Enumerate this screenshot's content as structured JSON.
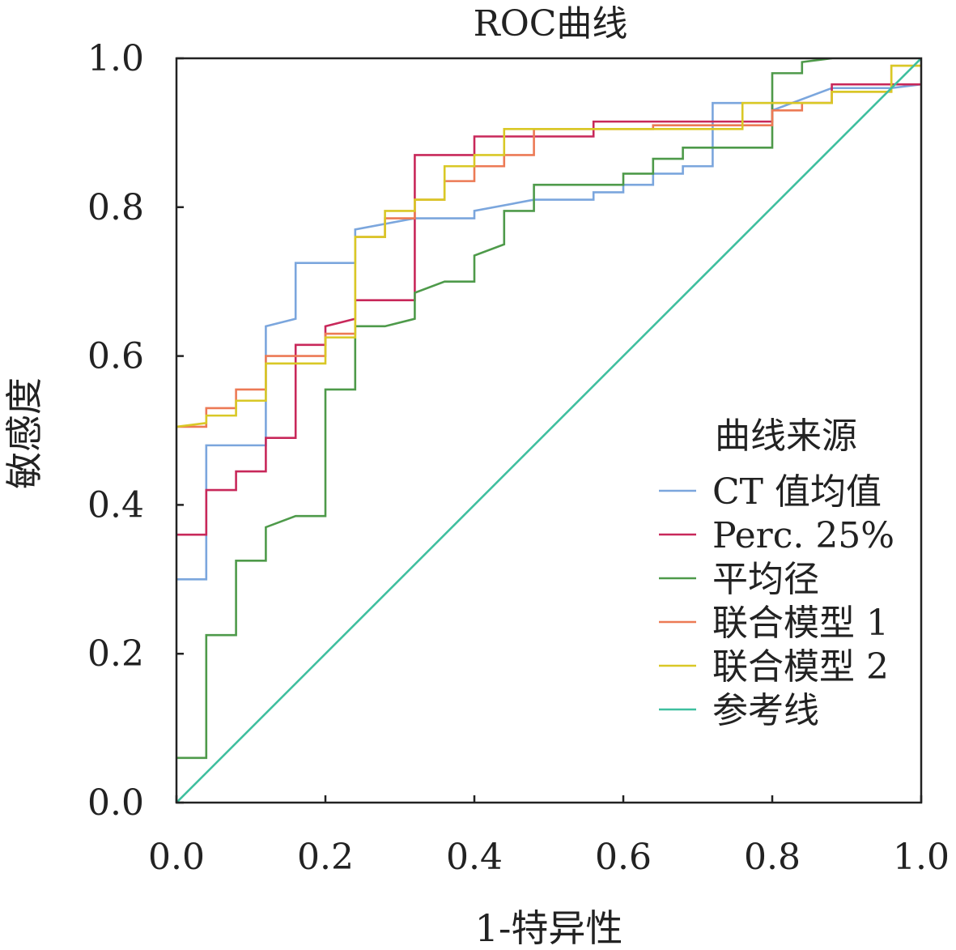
{
  "chart_data": {
    "type": "line",
    "title": "ROC曲线",
    "xlabel": "1-特异性",
    "ylabel": "敏感度",
    "xlim": [
      0,
      1
    ],
    "ylim": [
      0,
      1
    ],
    "x_ticks": [
      "0.0",
      "0.2",
      "0.4",
      "0.6",
      "0.8",
      "1.0"
    ],
    "y_ticks": [
      "0.0",
      "0.2",
      "0.4",
      "0.6",
      "0.8",
      "1.0"
    ],
    "grid": false,
    "legend_title": "曲线来源",
    "legend_position": "right",
    "series": [
      {
        "name": "CT 值均值",
        "color": "#7ba6dd",
        "points": [
          [
            0,
            0.3
          ],
          [
            0.04,
            0.3
          ],
          [
            0.04,
            0.48
          ],
          [
            0.12,
            0.48
          ],
          [
            0.12,
            0.64
          ],
          [
            0.16,
            0.65
          ],
          [
            0.16,
            0.725
          ],
          [
            0.24,
            0.725
          ],
          [
            0.24,
            0.77
          ],
          [
            0.32,
            0.785
          ],
          [
            0.4,
            0.785
          ],
          [
            0.4,
            0.795
          ],
          [
            0.48,
            0.81
          ],
          [
            0.56,
            0.81
          ],
          [
            0.56,
            0.82
          ],
          [
            0.6,
            0.82
          ],
          [
            0.6,
            0.83
          ],
          [
            0.64,
            0.83
          ],
          [
            0.64,
            0.845
          ],
          [
            0.68,
            0.845
          ],
          [
            0.68,
            0.855
          ],
          [
            0.72,
            0.855
          ],
          [
            0.72,
            0.94
          ],
          [
            0.8,
            0.94
          ],
          [
            0.8,
            0.93
          ],
          [
            0.88,
            0.96
          ],
          [
            0.96,
            0.96
          ],
          [
            1.0,
            0.965
          ]
        ]
      },
      {
        "name": "Perc. 25%",
        "color": "#c8285a",
        "points": [
          [
            0,
            0.36
          ],
          [
            0.04,
            0.36
          ],
          [
            0.04,
            0.42
          ],
          [
            0.08,
            0.42
          ],
          [
            0.08,
            0.445
          ],
          [
            0.12,
            0.445
          ],
          [
            0.12,
            0.49
          ],
          [
            0.16,
            0.49
          ],
          [
            0.16,
            0.615
          ],
          [
            0.2,
            0.615
          ],
          [
            0.2,
            0.64
          ],
          [
            0.24,
            0.65
          ],
          [
            0.24,
            0.675
          ],
          [
            0.32,
            0.675
          ],
          [
            0.32,
            0.87
          ],
          [
            0.4,
            0.87
          ],
          [
            0.4,
            0.895
          ],
          [
            0.48,
            0.895
          ],
          [
            0.56,
            0.895
          ],
          [
            0.56,
            0.915
          ],
          [
            0.8,
            0.915
          ],
          [
            0.8,
            0.94
          ],
          [
            0.88,
            0.94
          ],
          [
            0.88,
            0.965
          ],
          [
            1.0,
            0.965
          ]
        ]
      },
      {
        "name": "平均径",
        "color": "#4e9a4a",
        "points": [
          [
            0,
            0.06
          ],
          [
            0.04,
            0.06
          ],
          [
            0.04,
            0.225
          ],
          [
            0.08,
            0.225
          ],
          [
            0.08,
            0.325
          ],
          [
            0.12,
            0.325
          ],
          [
            0.12,
            0.37
          ],
          [
            0.16,
            0.385
          ],
          [
            0.2,
            0.385
          ],
          [
            0.2,
            0.555
          ],
          [
            0.24,
            0.555
          ],
          [
            0.24,
            0.64
          ],
          [
            0.28,
            0.64
          ],
          [
            0.32,
            0.65
          ],
          [
            0.32,
            0.685
          ],
          [
            0.36,
            0.7
          ],
          [
            0.4,
            0.7
          ],
          [
            0.4,
            0.735
          ],
          [
            0.44,
            0.75
          ],
          [
            0.44,
            0.795
          ],
          [
            0.48,
            0.795
          ],
          [
            0.48,
            0.83
          ],
          [
            0.56,
            0.83
          ],
          [
            0.6,
            0.83
          ],
          [
            0.6,
            0.845
          ],
          [
            0.64,
            0.845
          ],
          [
            0.64,
            0.865
          ],
          [
            0.68,
            0.865
          ],
          [
            0.68,
            0.88
          ],
          [
            0.8,
            0.88
          ],
          [
            0.8,
            0.98
          ],
          [
            0.84,
            0.98
          ],
          [
            0.84,
            0.995
          ],
          [
            0.88,
            1.0
          ]
        ]
      },
      {
        "name": "联合模型 1",
        "color": "#ec7a55",
        "points": [
          [
            0,
            0.505
          ],
          [
            0.04,
            0.505
          ],
          [
            0.04,
            0.53
          ],
          [
            0.08,
            0.53
          ],
          [
            0.08,
            0.555
          ],
          [
            0.12,
            0.555
          ],
          [
            0.12,
            0.6
          ],
          [
            0.2,
            0.6
          ],
          [
            0.2,
            0.63
          ],
          [
            0.24,
            0.63
          ],
          [
            0.24,
            0.76
          ],
          [
            0.28,
            0.76
          ],
          [
            0.28,
            0.785
          ],
          [
            0.32,
            0.785
          ],
          [
            0.32,
            0.81
          ],
          [
            0.36,
            0.81
          ],
          [
            0.36,
            0.835
          ],
          [
            0.4,
            0.835
          ],
          [
            0.4,
            0.855
          ],
          [
            0.44,
            0.855
          ],
          [
            0.44,
            0.87
          ],
          [
            0.48,
            0.87
          ],
          [
            0.48,
            0.905
          ],
          [
            0.56,
            0.905
          ],
          [
            0.64,
            0.905
          ],
          [
            0.64,
            0.91
          ],
          [
            0.8,
            0.91
          ],
          [
            0.8,
            0.93
          ],
          [
            0.84,
            0.93
          ],
          [
            0.84,
            0.94
          ],
          [
            0.88,
            0.94
          ],
          [
            0.88,
            0.955
          ],
          [
            0.96,
            0.955
          ],
          [
            0.96,
            0.99
          ],
          [
            1.0,
            0.99
          ]
        ]
      },
      {
        "name": "联合模型 2",
        "color": "#d9c826",
        "points": [
          [
            0,
            0.505
          ],
          [
            0.04,
            0.51
          ],
          [
            0.04,
            0.52
          ],
          [
            0.08,
            0.52
          ],
          [
            0.08,
            0.54
          ],
          [
            0.12,
            0.54
          ],
          [
            0.12,
            0.59
          ],
          [
            0.2,
            0.59
          ],
          [
            0.2,
            0.625
          ],
          [
            0.24,
            0.625
          ],
          [
            0.24,
            0.76
          ],
          [
            0.28,
            0.76
          ],
          [
            0.28,
            0.795
          ],
          [
            0.32,
            0.795
          ],
          [
            0.32,
            0.81
          ],
          [
            0.36,
            0.81
          ],
          [
            0.36,
            0.855
          ],
          [
            0.4,
            0.855
          ],
          [
            0.4,
            0.87
          ],
          [
            0.44,
            0.87
          ],
          [
            0.44,
            0.905
          ],
          [
            0.56,
            0.905
          ],
          [
            0.76,
            0.905
          ],
          [
            0.76,
            0.94
          ],
          [
            0.88,
            0.94
          ],
          [
            0.88,
            0.955
          ],
          [
            0.96,
            0.955
          ],
          [
            0.96,
            0.99
          ],
          [
            1.0,
            0.99
          ]
        ]
      },
      {
        "name": "参考线",
        "color": "#3fbf9f",
        "points": [
          [
            0,
            0
          ],
          [
            1,
            1
          ]
        ]
      }
    ]
  }
}
